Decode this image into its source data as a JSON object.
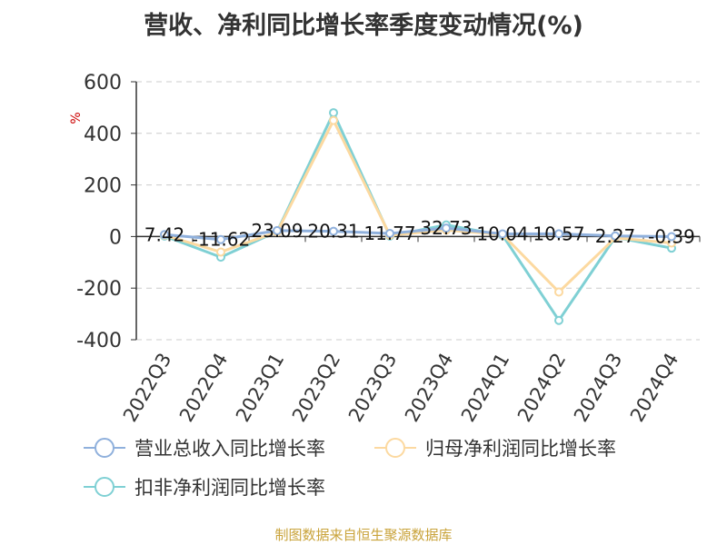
{
  "chart_data": {
    "type": "line",
    "title": "营收、净利同比增长率季度变动情况(%)",
    "ylabel": "%",
    "categories": [
      "2022Q3",
      "2022Q4",
      "2023Q1",
      "2023Q2",
      "2023Q3",
      "2023Q4",
      "2024Q1",
      "2024Q2",
      "2024Q3",
      "2024Q4"
    ],
    "ylim": [
      -400,
      600
    ],
    "yticks": [
      600,
      400,
      200,
      0,
      -200,
      -400
    ],
    "grid": true,
    "legend_position": "bottom",
    "series": [
      {
        "name": "营业总收入同比增长率",
        "color": "#8fb0dc",
        "values": [
          7.42,
          -11.62,
          23.09,
          20.31,
          11.77,
          32.73,
          10.04,
          10.57,
          2.27,
          -0.39
        ],
        "labels": [
          "7.42",
          "-11.62",
          "23.09",
          "20.31",
          "11.77",
          "32.73",
          "10.04",
          "10.57",
          "2.27",
          "-0.39"
        ]
      },
      {
        "name": "归母净利润同比增长率",
        "color": "#fcd9a0",
        "values": [
          5,
          -60,
          18,
          450,
          5,
          25,
          8,
          -215,
          -5,
          -25
        ]
      },
      {
        "name": "扣非净利润同比增长率",
        "color": "#7fd0d4",
        "values": [
          2,
          -80,
          20,
          480,
          2,
          45,
          5,
          -325,
          -3,
          -45
        ]
      }
    ]
  },
  "source": {
    "text": "制图数据来自恒生聚源数据库",
    "color": "#c9a33a"
  }
}
